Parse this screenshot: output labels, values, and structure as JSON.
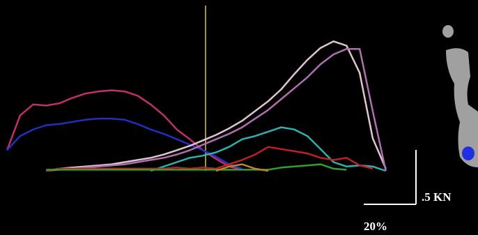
{
  "chart_data": {
    "type": "line",
    "x": [
      0,
      5,
      10,
      15,
      20,
      25,
      30,
      35,
      40,
      45,
      50,
      55,
      60,
      65,
      70,
      75,
      80,
      85,
      90,
      95,
      100,
      105,
      110,
      115,
      120,
      125,
      130,
      135,
      140,
      145
    ],
    "xlim": [
      -2.7,
      180.3
    ],
    "ylim": [
      0,
      1.57
    ],
    "series": [
      {
        "color": "#c0306a",
        "values": [
          0.19,
          0.51,
          0.61,
          0.6,
          0.62,
          0.67,
          0.71,
          0.73,
          0.74,
          0.73,
          0.69,
          0.61,
          0.51,
          0.38,
          0.29,
          0.19,
          0.11,
          0.04,
          0.01,
          null,
          null,
          null,
          null,
          null,
          null,
          null,
          null,
          null,
          null,
          null
        ]
      },
      {
        "color": "#2030c0",
        "values": [
          0.19,
          0.32,
          0.38,
          0.42,
          0.43,
          0.45,
          0.47,
          0.48,
          0.48,
          0.47,
          0.43,
          0.38,
          0.34,
          0.29,
          0.24,
          0.19,
          0.13,
          0.06,
          0.02,
          null,
          null,
          null,
          null,
          null,
          null,
          null,
          null,
          null,
          null,
          null
        ]
      },
      {
        "color": "#e0c4d4",
        "values": [
          null,
          null,
          null,
          0,
          0.02,
          0.03,
          0.04,
          0.05,
          0.06,
          0.08,
          0.1,
          0.12,
          0.15,
          0.19,
          0.23,
          0.28,
          0.33,
          0.39,
          0.46,
          0.55,
          0.64,
          0.75,
          0.89,
          1.02,
          1.13,
          1.19,
          1.15,
          0.9,
          0.3,
          0.02
        ]
      },
      {
        "color": "#b070b0",
        "values": [
          null,
          null,
          null,
          0,
          0.01,
          0.02,
          0.03,
          0.04,
          0.05,
          0.06,
          0.08,
          0.1,
          0.12,
          0.15,
          0.19,
          0.24,
          0.29,
          0.34,
          0.4,
          0.48,
          0.56,
          0.66,
          0.76,
          0.86,
          0.98,
          1.07,
          1.12,
          1.12,
          0.55,
          0
        ]
      },
      {
        "color": "#30b0b0",
        "values": [
          null,
          null,
          null,
          null,
          null,
          null,
          null,
          null,
          null,
          null,
          null,
          0,
          0.04,
          0.08,
          0.12,
          0.14,
          0.17,
          0.22,
          0.29,
          0.32,
          0.36,
          0.4,
          0.38,
          0.32,
          0.2,
          0.08,
          0.04,
          0.05,
          0.04,
          0
        ]
      },
      {
        "color": "#c02020",
        "values": [
          null,
          null,
          null,
          0,
          0.02,
          0.02,
          0.02,
          0.02,
          0.02,
          0.02,
          0.02,
          0.02,
          0.02,
          0.03,
          0.02,
          0.03,
          0.02,
          0.06,
          0.1,
          0.15,
          0.22,
          0.2,
          0.18,
          0.16,
          0.12,
          0.1,
          0.12,
          0.05,
          0.02,
          null
        ]
      },
      {
        "color": "#30a030",
        "values": [
          null,
          null,
          null,
          0.01,
          0.01,
          0.01,
          0.01,
          0.01,
          0.01,
          0.01,
          0.01,
          0.01,
          0.01,
          0.01,
          0.01,
          0.01,
          0.01,
          0.01,
          0.01,
          0.01,
          0.01,
          0.03,
          0.04,
          0.05,
          0.06,
          0.02,
          0.01,
          null,
          null,
          null
        ]
      },
      {
        "color": "#c08030",
        "values": [
          null,
          null,
          null,
          null,
          null,
          null,
          null,
          null,
          null,
          null,
          null,
          null,
          null,
          null,
          null,
          null,
          0,
          0.04,
          0.06,
          0.02,
          0,
          null,
          null,
          null,
          null,
          null,
          null,
          null,
          null,
          null
        ]
      }
    ],
    "marker_line": {
      "x": 76,
      "color": "#a09a30"
    },
    "scale_bar": {
      "x_length": 20,
      "x_label": "20%",
      "y_length": 0.5,
      "y_label": ".5 KN",
      "color": "#ffffff"
    }
  }
}
